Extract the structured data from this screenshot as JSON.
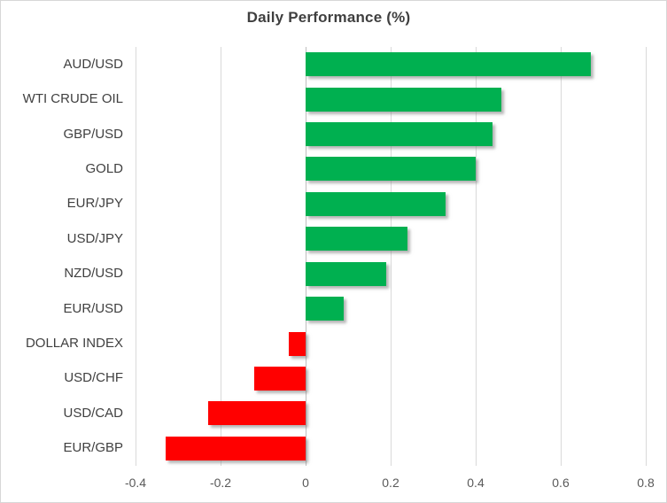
{
  "chart_data": {
    "type": "bar",
    "orientation": "horizontal",
    "title": "Daily Performance (%)",
    "categories": [
      "AUD/USD",
      "WTI CRUDE OIL",
      "GBP/USD",
      "GOLD",
      "EUR/JPY",
      "USD/JPY",
      "NZD/USD",
      "EUR/USD",
      "DOLLAR INDEX",
      "USD/CHF",
      "USD/CAD",
      "EUR/GBP"
    ],
    "values": [
      0.67,
      0.46,
      0.44,
      0.4,
      0.33,
      0.24,
      0.19,
      0.09,
      -0.04,
      -0.12,
      -0.23,
      -0.33
    ],
    "xlabel": "",
    "ylabel": "",
    "xlim": [
      -0.4,
      0.8
    ],
    "x_ticks": [
      -0.4,
      -0.2,
      0,
      0.2,
      0.4,
      0.6,
      0.8
    ],
    "x_tick_labels": [
      "-0.4",
      "-0.2",
      "0",
      "0.2",
      "0.4",
      "0.6",
      "0.8"
    ],
    "grid": "vertical-gridlines-on",
    "legend": "none",
    "colors": {
      "positive_bar": "#00B050",
      "negative_bar": "#FF0000",
      "gridline": "#D9D9D9",
      "zero_axis": "#BFBFBF",
      "title_text": "#3F3F3F",
      "category_text": "#404040",
      "tick_text": "#595959"
    }
  }
}
